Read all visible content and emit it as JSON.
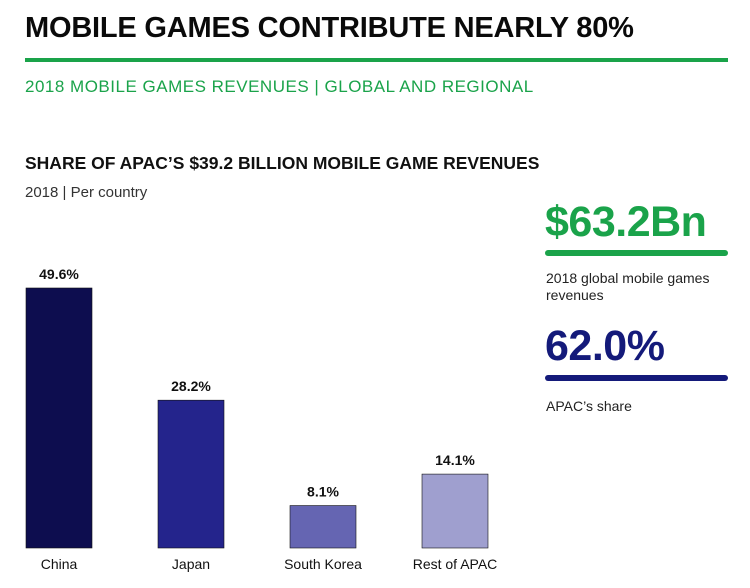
{
  "header": {
    "title": "MOBILE GAMES CONTRIBUTE NEARLY 80%",
    "subtitle": "2018 MOBILE GAMES REVENUES | GLOBAL AND REGIONAL"
  },
  "colors": {
    "accent_green": "#1aa34a",
    "accent_navy": "#141a7a"
  },
  "chart_data": {
    "type": "bar",
    "title": "SHARE OF APAC’S $39.2 BILLION MOBILE GAME REVENUES",
    "subtitle": "2018 | Per country",
    "categories": [
      "China",
      "Japan",
      "South Korea",
      "Rest of APAC"
    ],
    "values": [
      49.6,
      28.2,
      8.1,
      14.1
    ],
    "value_labels": [
      "49.6%",
      "28.2%",
      "8.1%",
      "14.1%"
    ],
    "bar_colors": [
      "#0d0d4f",
      "#24248c",
      "#6565b2",
      "#9f9fcf"
    ],
    "ylim": [
      0,
      49.6
    ],
    "grid": false,
    "legend": "none"
  },
  "kpis": [
    {
      "value": "$63.2Bn",
      "description": "2018 global mobile games revenues",
      "color": "#1aa34a"
    },
    {
      "value": "62.0%",
      "description": "APAC’s share",
      "color": "#141a7a"
    }
  ]
}
